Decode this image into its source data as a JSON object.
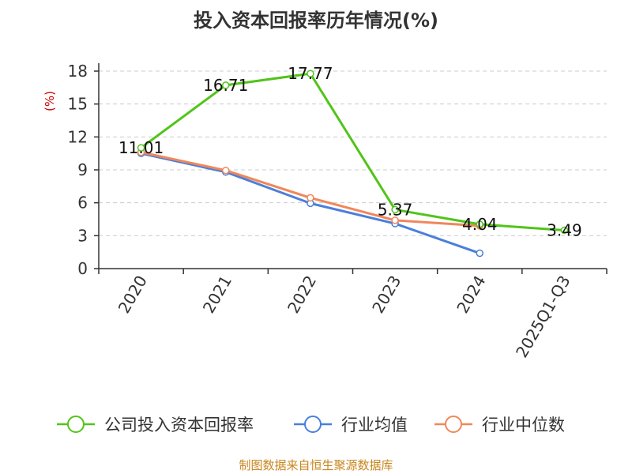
{
  "chart_data": {
    "type": "line",
    "title": "投入资本回报率历年情况(%)",
    "ylabel": "(%)",
    "categories": [
      "2020",
      "2021",
      "2022",
      "2023",
      "2024",
      "2025Q1-Q3"
    ],
    "ylim": [
      0,
      18
    ],
    "yticks": [
      0,
      3,
      6,
      9,
      12,
      15,
      18
    ],
    "grid": true,
    "legend_position": "bottom",
    "series": [
      {
        "name": "公司投入资本回报率",
        "color": "#52c41a",
        "values": [
          11.01,
          16.71,
          17.77,
          5.37,
          4.04,
          3.49
        ],
        "labels": [
          "11.01",
          "16.71",
          "17.77",
          "5.37",
          "4.04",
          "3.49"
        ]
      },
      {
        "name": "行业均值",
        "color": "#4a7fdb",
        "values": [
          10.5,
          8.8,
          5.95,
          4.1,
          1.4,
          null
        ]
      },
      {
        "name": "行业中位数",
        "color": "#f0875a",
        "values": [
          10.6,
          8.95,
          6.45,
          4.4,
          3.9,
          null
        ]
      }
    ]
  },
  "source": "制图数据来自恒生聚源数据库",
  "colors": {
    "axis": "#333333",
    "grid": "#cccccc",
    "ylabel": "#cc0000",
    "source": "#c8861e"
  }
}
